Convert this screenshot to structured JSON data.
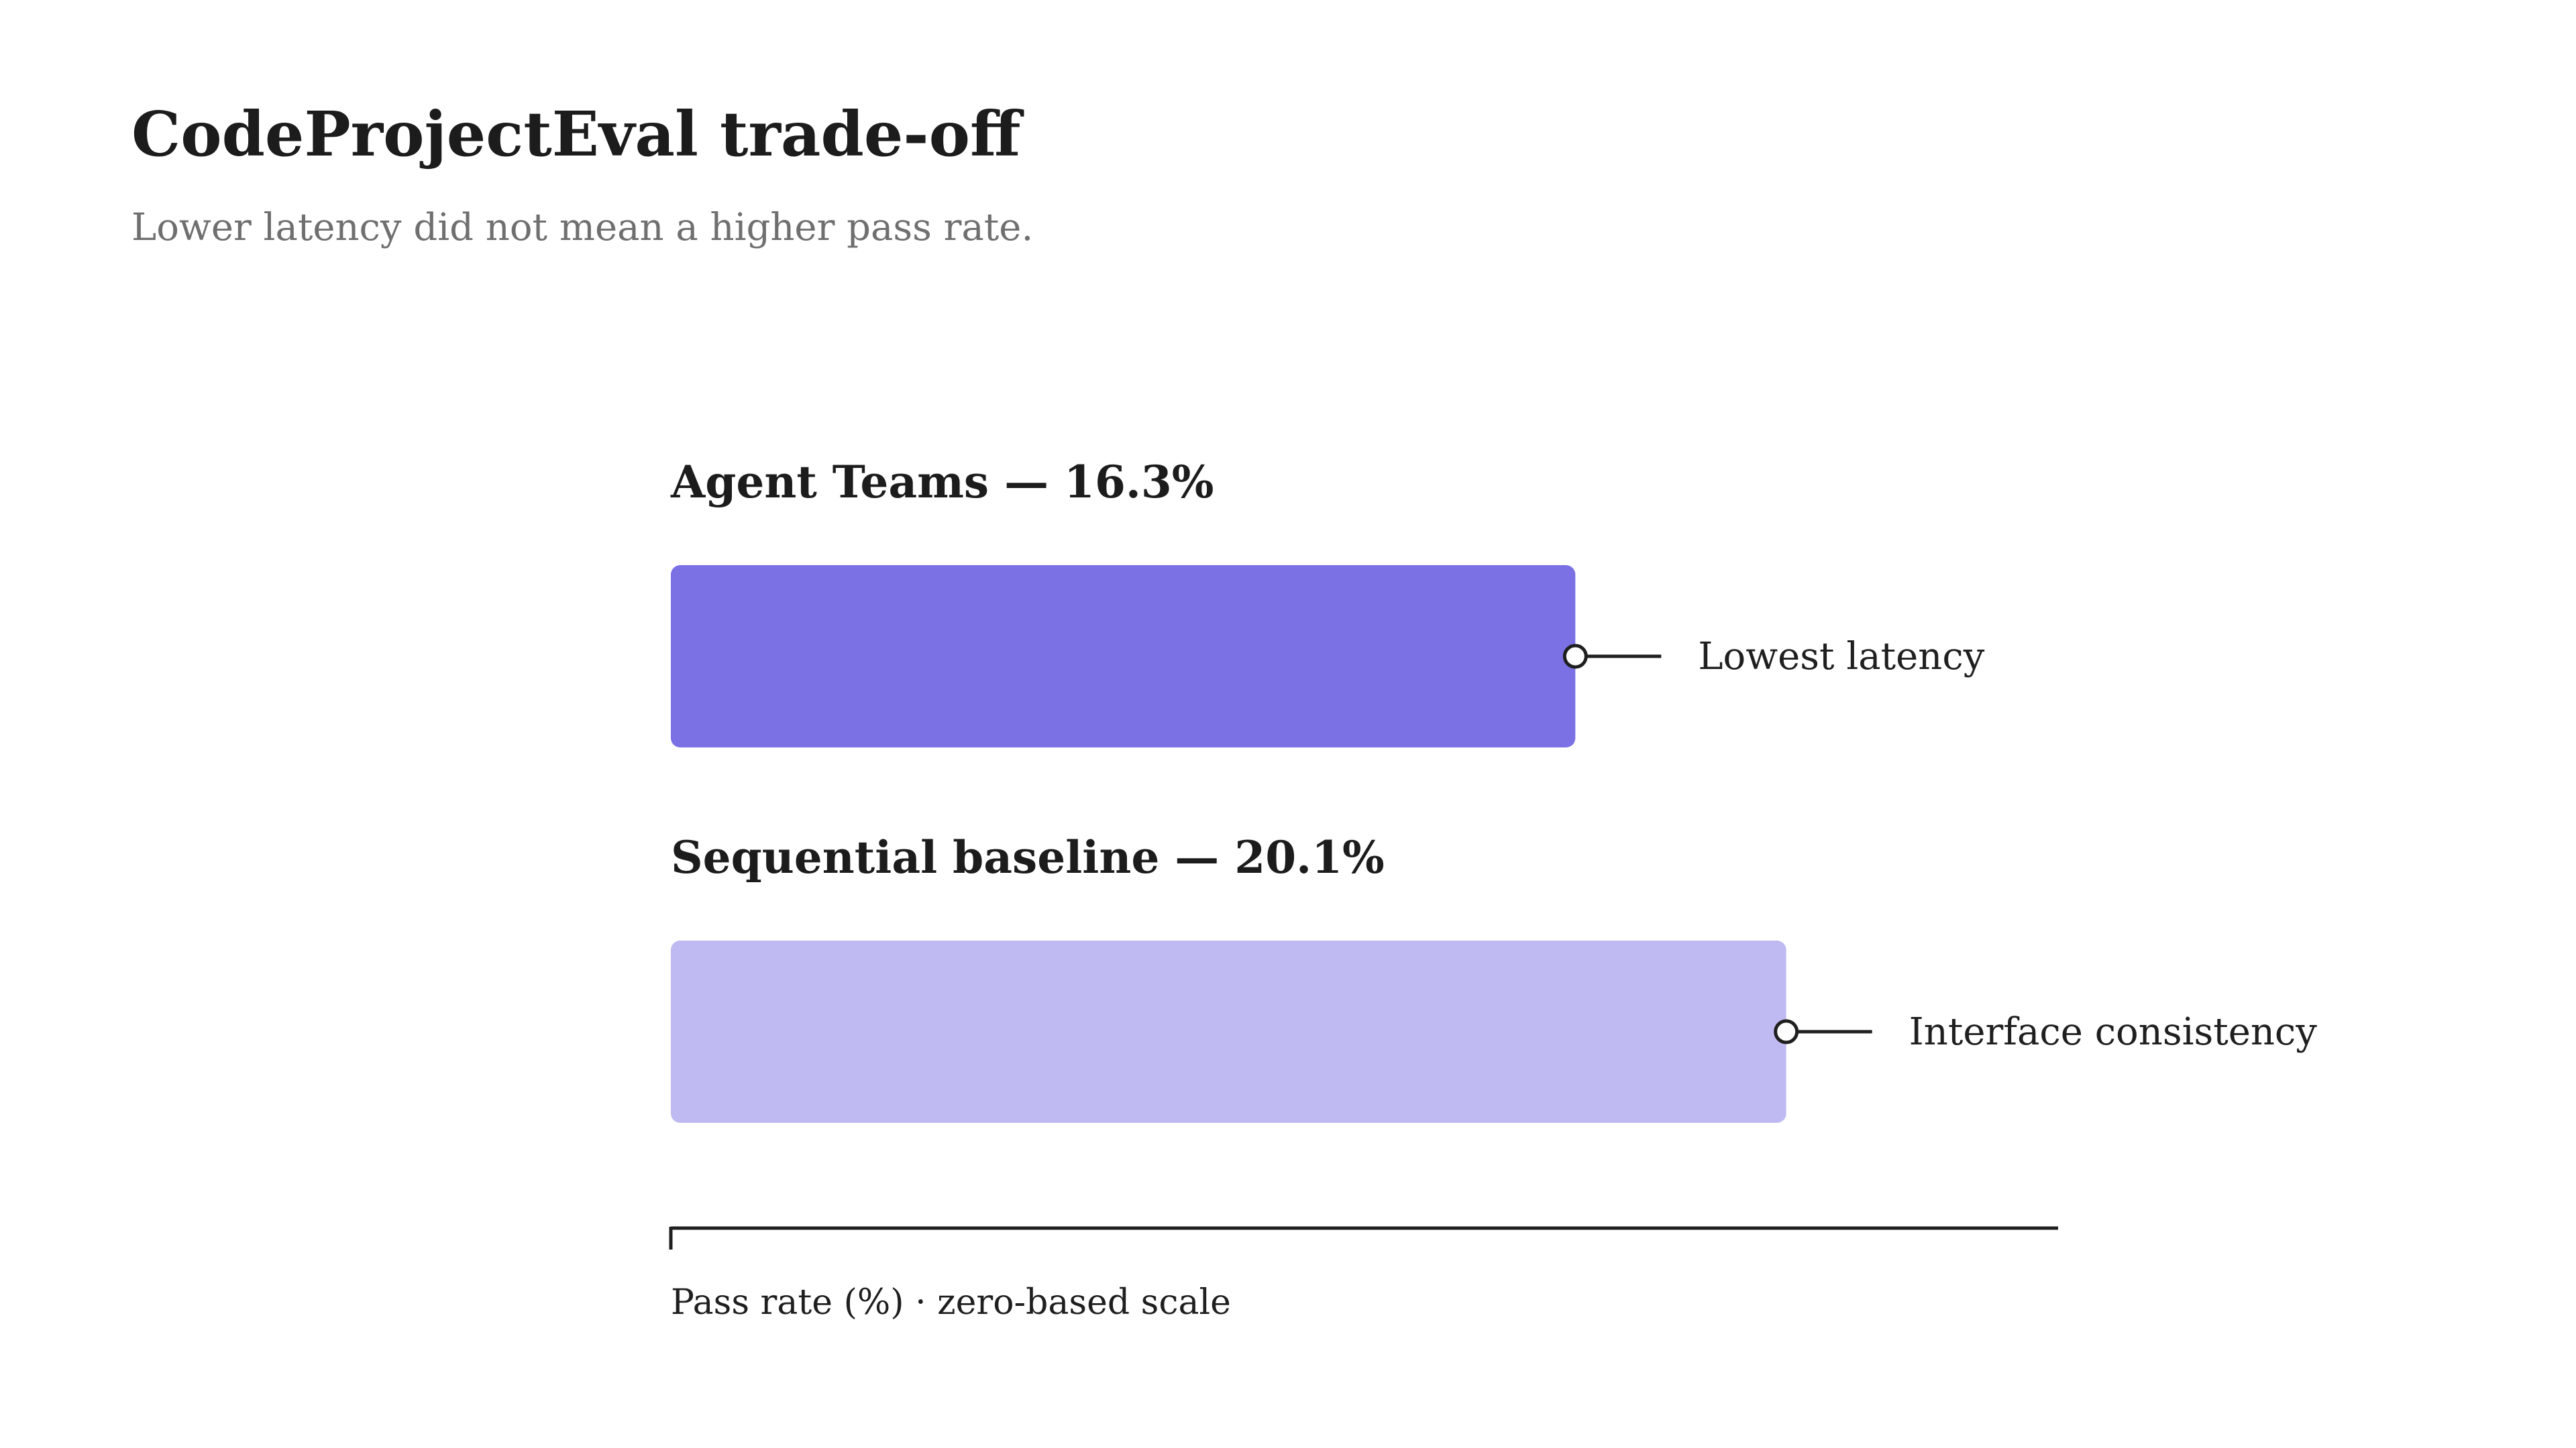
{
  "chart_data": {
    "type": "bar",
    "orientation": "horizontal",
    "title": "CodeProjectEval trade-off",
    "subtitle": "Lower latency did not mean a higher pass rate.",
    "categories": [
      "Agent Teams",
      "Sequential baseline"
    ],
    "values": [
      16.3,
      20.1
    ],
    "value_labels": [
      "Agent Teams — 16.3%",
      "Sequential baseline — 20.1%"
    ],
    "annotations": [
      "Lowest latency",
      "Interface consistency"
    ],
    "colors": [
      "#7b70e4",
      "#bfbaf2"
    ],
    "xlabel": "Pass rate (%) · zero-based scale",
    "xlim": [
      0,
      25
    ],
    "grid": false,
    "legend": "none"
  }
}
